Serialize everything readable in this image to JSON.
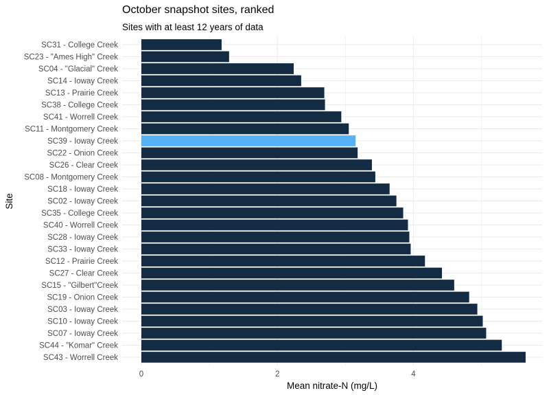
{
  "chart_data": {
    "type": "bar",
    "orientation": "horizontal",
    "title": "October snapshot sites, ranked",
    "subtitle": "Sites with at least 12 years of data",
    "xlabel": "Mean nitrate-N (mg/L)",
    "ylabel": "Site",
    "xlim": [
      0,
      5.65
    ],
    "xticks": [
      0,
      2,
      4
    ],
    "grid": true,
    "categories": [
      "SC31 - College Creek",
      "SC23 - \"Ames High\" Creek",
      "SC04 - \"Glacial\" Creek",
      "SC14 - Ioway Creek",
      "SC13 - Prairie Creek",
      "SC38 - College Creek",
      "SC41 - Worrell Creek",
      "SC11 - Montgomery Creek",
      "SC39 - Ioway Creek",
      "SC22 - Onion Creek",
      "SC26 - Clear Creek",
      "SC08 - Montgomery Creek",
      "SC18 - Ioway Creek",
      "SC02 - Ioway Creek",
      "SC35 - College Creek",
      "SC40 - Worrell Creek",
      "SC28 - Ioway Creek",
      "SC33 - Ioway Creek",
      "SC12 - Prairie Creek",
      "SC27 - Clear Creek",
      "SC15 - \"Gilbert\"Creek",
      "SC19 - Onion Creek",
      "SC03 - Ioway Creek",
      "SC10 - Ioway Creek",
      "SC07 - Ioway Creek",
      "SC44 - \"Komar\" Creek",
      "SC43 - Worrell Creek"
    ],
    "values": [
      1.18,
      1.29,
      2.24,
      2.35,
      2.69,
      2.7,
      2.94,
      3.05,
      3.15,
      3.18,
      3.39,
      3.44,
      3.65,
      3.75,
      3.85,
      3.92,
      3.94,
      3.96,
      4.17,
      4.42,
      4.6,
      4.82,
      4.94,
      5.02,
      5.07,
      5.3,
      5.65
    ],
    "highlight_category": "SC39 - Ioway Creek",
    "colors": {
      "bar": "#132b43",
      "highlight": "#56b1f7",
      "grid": "#ebebeb",
      "text": "#4d4d4d"
    }
  }
}
